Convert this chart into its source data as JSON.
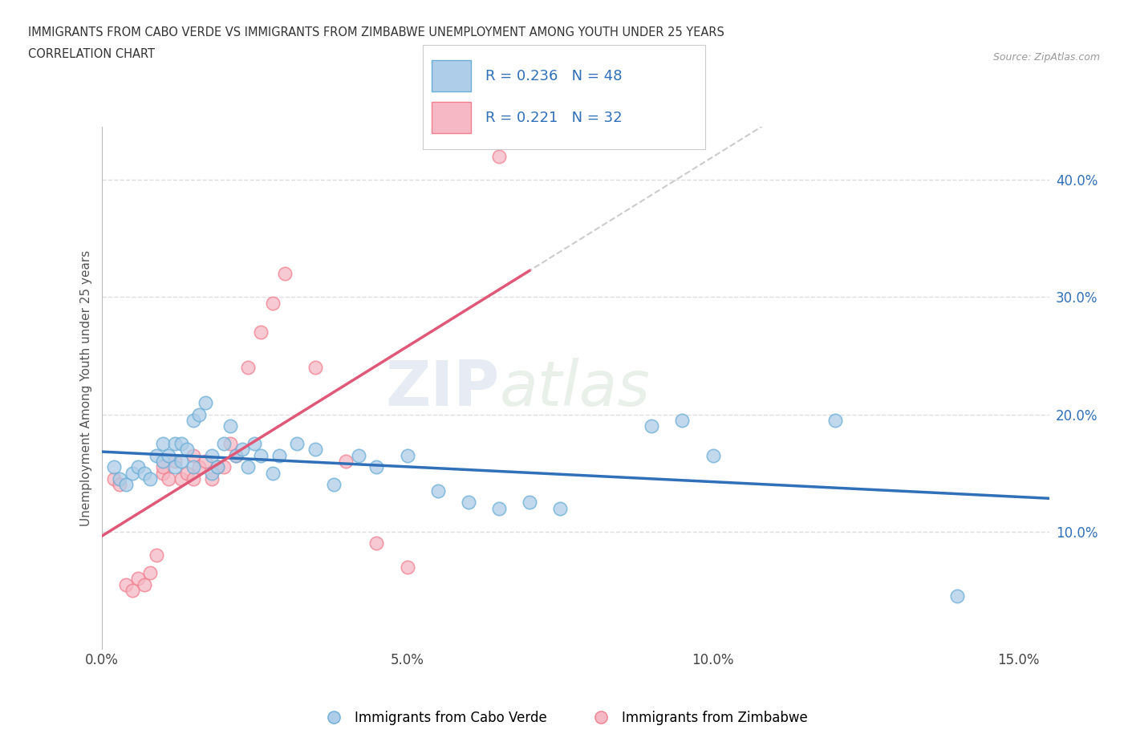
{
  "title_line1": "IMMIGRANTS FROM CABO VERDE VS IMMIGRANTS FROM ZIMBABWE UNEMPLOYMENT AMONG YOUTH UNDER 25 YEARS",
  "title_line2": "CORRELATION CHART",
  "source": "Source: ZipAtlas.com",
  "ylabel": "Unemployment Among Youth under 25 years",
  "xlim": [
    0.0,
    0.155
  ],
  "ylim": [
    0.0,
    0.445
  ],
  "xticks": [
    0.0,
    0.05,
    0.1,
    0.15
  ],
  "yticks": [
    0.1,
    0.2,
    0.3,
    0.4
  ],
  "ytick_labels": [
    "10.0%",
    "20.0%",
    "30.0%",
    "40.0%"
  ],
  "xtick_labels": [
    "0.0%",
    "5.0%",
    "10.0%",
    "15.0%"
  ],
  "legend_R1": "0.236",
  "legend_N1": "48",
  "legend_R2": "0.221",
  "legend_N2": "32",
  "color_cabo": "#aecde8",
  "color_zimbabwe": "#f5b8c4",
  "color_cabo_edge": "#6aaed6",
  "color_zimbabwe_edge": "#f08090",
  "color_line_cabo": "#3070b8",
  "color_line_zimbabwe": "#e05878",
  "color_dashed": "#cccccc",
  "cabo_verde_x": [
    0.002,
    0.003,
    0.004,
    0.005,
    0.006,
    0.007,
    0.008,
    0.009,
    0.01,
    0.01,
    0.011,
    0.012,
    0.012,
    0.013,
    0.013,
    0.014,
    0.015,
    0.015,
    0.016,
    0.017,
    0.018,
    0.018,
    0.019,
    0.02,
    0.021,
    0.022,
    0.023,
    0.024,
    0.025,
    0.026,
    0.028,
    0.029,
    0.032,
    0.035,
    0.038,
    0.042,
    0.045,
    0.05,
    0.055,
    0.06,
    0.065,
    0.07,
    0.075,
    0.09,
    0.095,
    0.1,
    0.12,
    0.14
  ],
  "cabo_verde_y": [
    0.155,
    0.145,
    0.14,
    0.15,
    0.155,
    0.15,
    0.145,
    0.165,
    0.16,
    0.175,
    0.165,
    0.155,
    0.175,
    0.16,
    0.175,
    0.17,
    0.155,
    0.195,
    0.2,
    0.21,
    0.165,
    0.15,
    0.155,
    0.175,
    0.19,
    0.165,
    0.17,
    0.155,
    0.175,
    0.165,
    0.15,
    0.165,
    0.175,
    0.17,
    0.14,
    0.165,
    0.155,
    0.165,
    0.135,
    0.125,
    0.12,
    0.125,
    0.12,
    0.19,
    0.195,
    0.165,
    0.195,
    0.045
  ],
  "zimbabwe_x": [
    0.002,
    0.003,
    0.004,
    0.005,
    0.006,
    0.007,
    0.008,
    0.009,
    0.01,
    0.01,
    0.011,
    0.012,
    0.013,
    0.014,
    0.015,
    0.015,
    0.016,
    0.017,
    0.018,
    0.019,
    0.02,
    0.021,
    0.022,
    0.024,
    0.026,
    0.028,
    0.03,
    0.035,
    0.04,
    0.045,
    0.05,
    0.065
  ],
  "zimbabwe_y": [
    0.145,
    0.14,
    0.055,
    0.05,
    0.06,
    0.055,
    0.065,
    0.08,
    0.15,
    0.155,
    0.145,
    0.16,
    0.145,
    0.15,
    0.165,
    0.145,
    0.155,
    0.16,
    0.145,
    0.155,
    0.155,
    0.175,
    0.165,
    0.24,
    0.27,
    0.295,
    0.32,
    0.24,
    0.16,
    0.09,
    0.07,
    0.42
  ],
  "label_cabo": "Immigrants from Cabo Verde",
  "label_zimbabwe": "Immigrants from Zimbabwe",
  "background_color": "#ffffff",
  "grid_color": "#dddddd"
}
